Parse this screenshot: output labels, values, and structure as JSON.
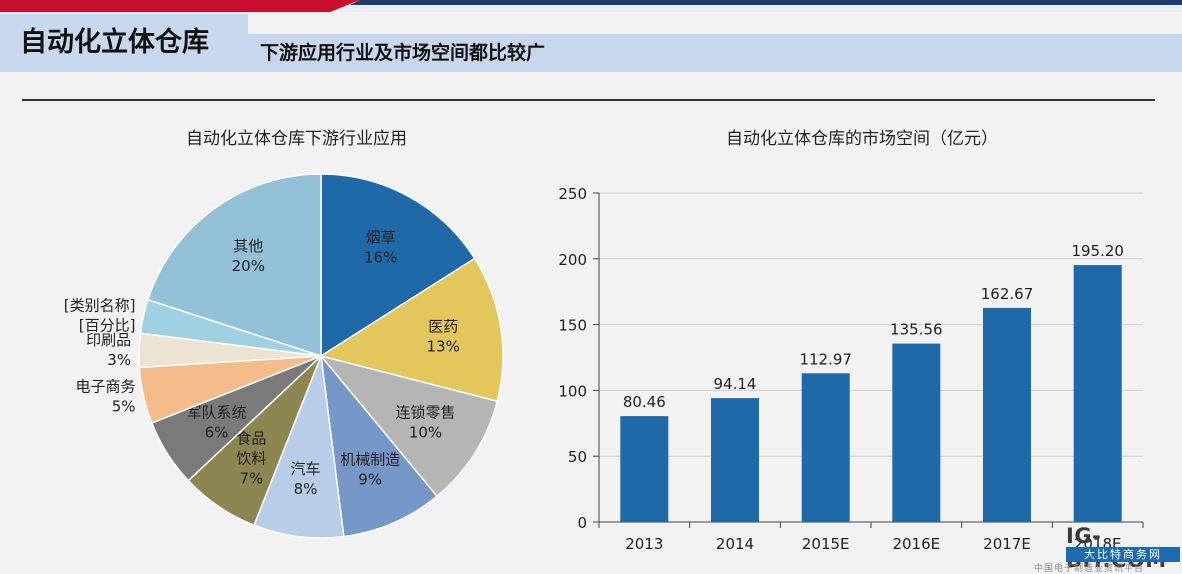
{
  "header": {
    "title": "自动化立体仓库",
    "subtitle": "下游应用行业及市场空间都比较广"
  },
  "chart_data": [
    {
      "type": "pie",
      "title": "自动化立体仓库下游行业应用",
      "slices": [
        {
          "label": "烟草",
          "value": 16,
          "display": "16%",
          "color": "#1f69a9"
        },
        {
          "label": "医药",
          "value": 13,
          "display": "13%",
          "color": "#e3c75d"
        },
        {
          "label": "连锁零售",
          "value": 10,
          "display": "10%",
          "color": "#b5b5b5"
        },
        {
          "label": "机械制造",
          "value": 9,
          "display": "9%",
          "color": "#7698c8"
        },
        {
          "label": "汽车",
          "value": 8,
          "display": "8%",
          "color": "#b8cde8"
        },
        {
          "label": "食品饮料",
          "label_lines": [
            "食品",
            "饮料"
          ],
          "value": 7,
          "display": "7%",
          "color": "#8e8650"
        },
        {
          "label": "军队系统",
          "value": 6,
          "display": "6%",
          "color": "#7a7a7a"
        },
        {
          "label": "电子商务",
          "value": 5,
          "display": "5%",
          "color": "#f5bc8a"
        },
        {
          "label": "印刷品",
          "value": 3,
          "display": "3%",
          "color": "#ede3d2"
        },
        {
          "label": "[类别名称]",
          "label_lines": [
            "[类别名称]",
            "[百分比]"
          ],
          "value": 3,
          "display": "",
          "color": "#9ed2e2"
        },
        {
          "label": "其他",
          "value": 20,
          "display": "20%",
          "color": "#93c1d8"
        }
      ]
    },
    {
      "type": "bar",
      "title": "自动化立体仓库的市场空间（亿元）",
      "categories": [
        "2013",
        "2014",
        "2015E",
        "2016E",
        "2017E",
        "2018E"
      ],
      "values": [
        80.46,
        94.14,
        112.97,
        135.56,
        162.67,
        195.2
      ],
      "value_labels": [
        "80.46",
        "94.14",
        "112.97",
        "135.56",
        "162.67",
        "195.20"
      ],
      "ylim": [
        0,
        250
      ],
      "yticks": [
        0,
        50,
        100,
        150,
        200,
        250
      ],
      "color": "#1f69a9",
      "grid": true
    }
  ],
  "watermark": {
    "brand": "IG-BIT.COM",
    "tag": "大比特商务网",
    "footer": "中国电子制造业资讯平台"
  }
}
